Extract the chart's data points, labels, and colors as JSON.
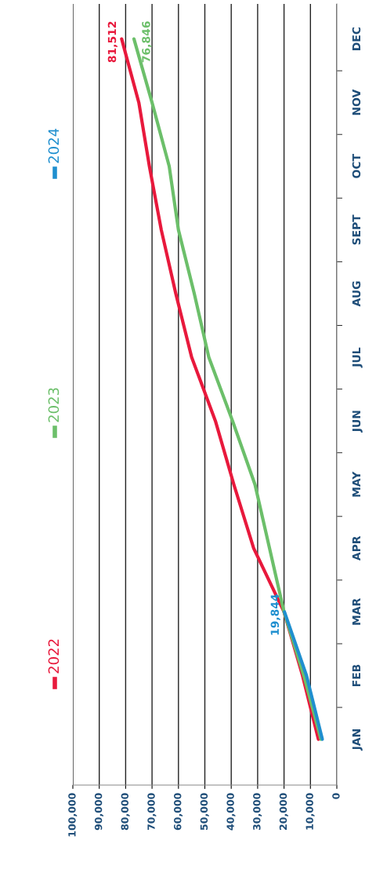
{
  "chart_data": {
    "type": "line",
    "orientation": "horizontal",
    "categories": [
      "DEC",
      "NOV",
      "OCT",
      "SEPT",
      "AUG",
      "JUL",
      "JUN",
      "MAY",
      "APR",
      "MAR",
      "FEB",
      "JAN"
    ],
    "series": [
      {
        "name": "2022",
        "color": "#e8193c",
        "values": [
          81512,
          75000,
          71000,
          66500,
          61000,
          55000,
          46000,
          39000,
          31500,
          20000,
          13000,
          7000
        ],
        "value_labels": [
          "81,512",
          null,
          null,
          null,
          null,
          null,
          null,
          null,
          null,
          null,
          null,
          null
        ]
      },
      {
        "name": "2023",
        "color": "#6cbf6a",
        "values": [
          76846,
          70000,
          63500,
          60000,
          54000,
          48500,
          39500,
          31000,
          25500,
          20000,
          12500,
          6000
        ],
        "value_labels": [
          "76,846",
          null,
          null,
          null,
          null,
          null,
          null,
          null,
          null,
          null,
          null,
          null
        ]
      },
      {
        "name": "2024",
        "color": "#1f8fcf",
        "values": [
          null,
          null,
          null,
          null,
          null,
          null,
          null,
          null,
          null,
          19844,
          11500,
          5500
        ],
        "value_labels": [
          null,
          null,
          null,
          null,
          null,
          null,
          null,
          null,
          null,
          "19,844",
          null,
          null
        ]
      }
    ],
    "xlim": [
      100000,
      0
    ],
    "xticks": [
      {
        "value": 100000,
        "label": "100,000"
      },
      {
        "value": 90000,
        "label": "90,000"
      },
      {
        "value": 80000,
        "label": "80,000"
      },
      {
        "value": 70000,
        "label": "70,000"
      },
      {
        "value": 60000,
        "label": "60,000"
      },
      {
        "value": 50000,
        "label": "50,000"
      },
      {
        "value": 40000,
        "label": "40,000"
      },
      {
        "value": 30000,
        "label": "30,000"
      },
      {
        "value": 20000,
        "label": "20,000"
      },
      {
        "value": 10000,
        "label": "10,000"
      },
      0
    ],
    "grid": "x",
    "legend": "left",
    "marker": "none",
    "line_style": "solid"
  }
}
